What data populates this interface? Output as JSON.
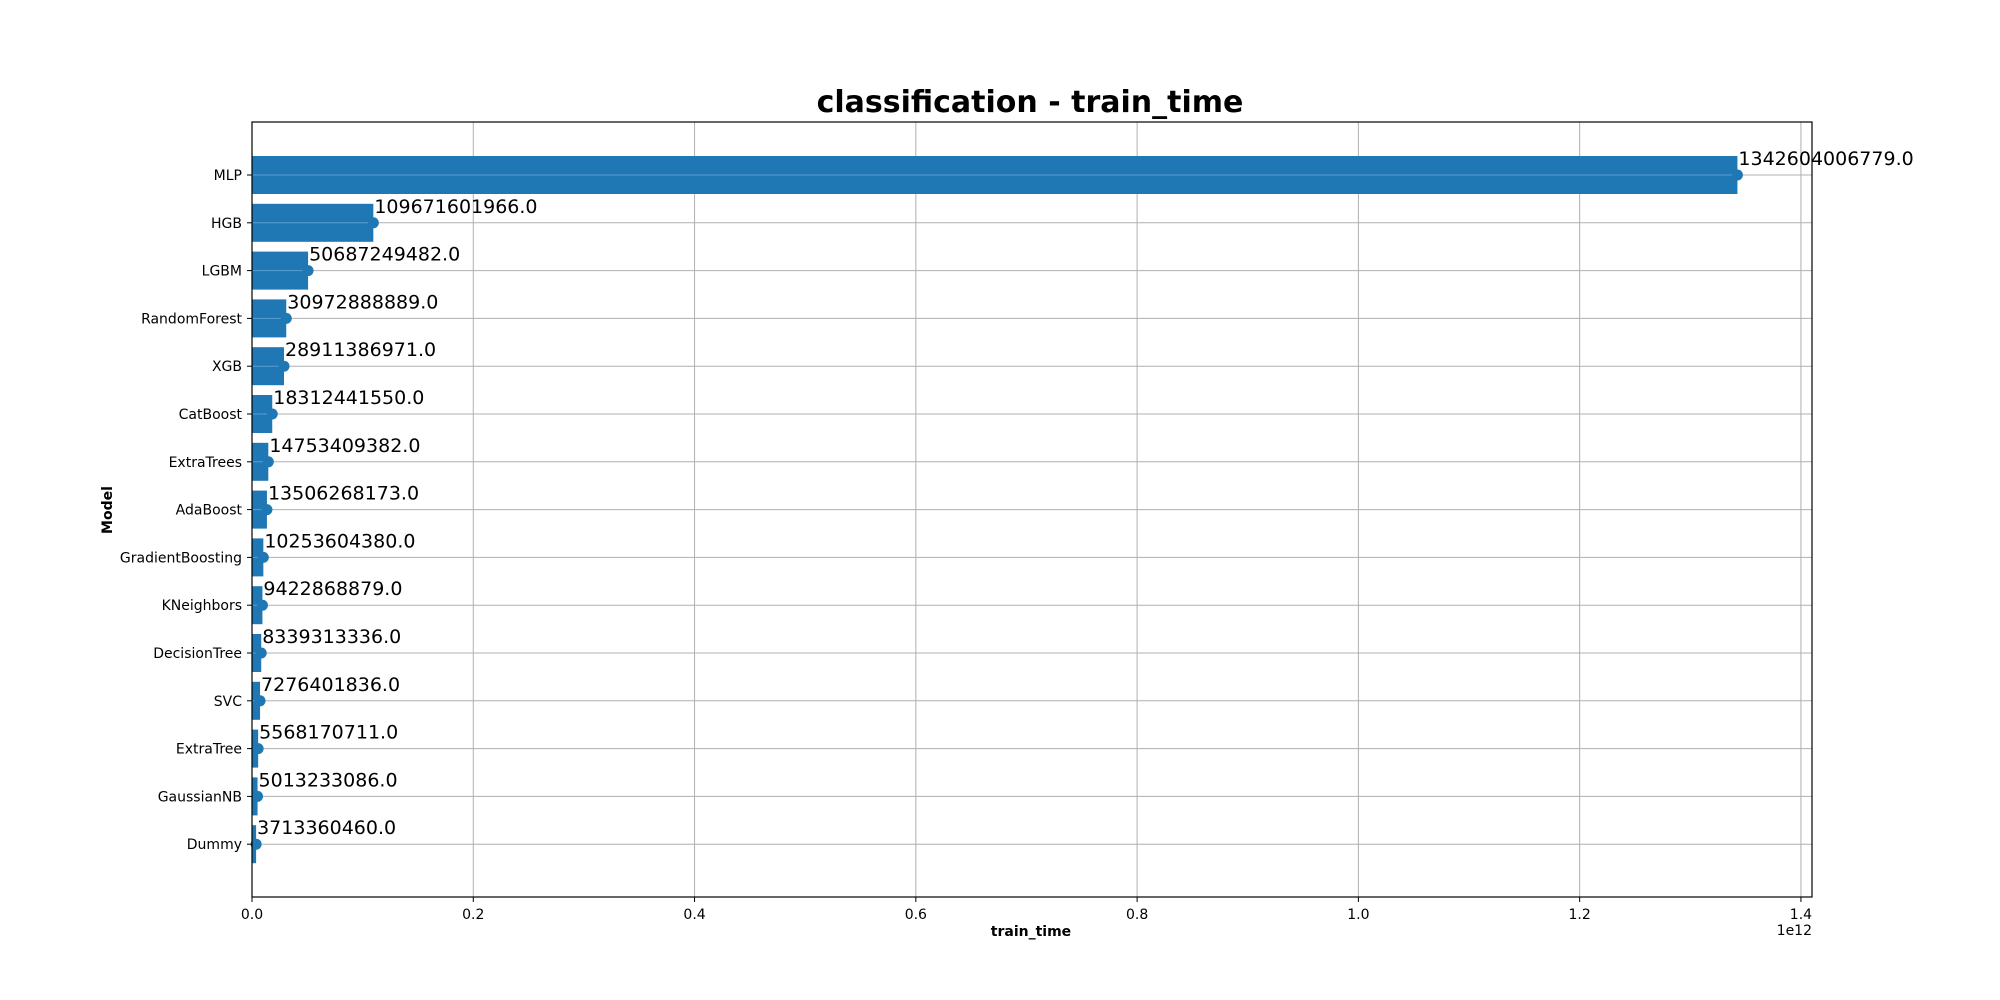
{
  "chart_data": {
    "type": "bar",
    "orientation": "horizontal",
    "title": "classification - train_time",
    "xlabel": "train_time",
    "ylabel": "Model",
    "x_scale_label": "1e12",
    "xlim": [
      0,
      1410000000000
    ],
    "xticks": [
      0,
      0.2,
      0.4,
      0.6,
      0.8,
      1.0,
      1.2,
      1.4
    ],
    "xtick_labels": [
      "0.0",
      "0.2",
      "0.4",
      "0.6",
      "0.8",
      "1.0",
      "1.2",
      "1.4"
    ],
    "grid": true,
    "bar_color": "#1f77b4",
    "categories": [
      "MLP",
      "HGB",
      "LGBM",
      "RandomForest",
      "XGB",
      "CatBoost",
      "ExtraTrees",
      "AdaBoost",
      "GradientBoosting",
      "KNeighbors",
      "DecisionTree",
      "SVC",
      "ExtraTree",
      "GaussianNB",
      "Dummy"
    ],
    "values": [
      1342604006779.0,
      109671601966.0,
      50687249482.0,
      30972888889.0,
      28911386971.0,
      18312441550.0,
      14753409382.0,
      13506268173.0,
      10253604380.0,
      9422868879.0,
      8339313336.0,
      7276401836.0,
      5568170711.0,
      5013233086.0,
      3713360460.0
    ],
    "data_labels": [
      "1342604006779.0",
      "109671601966.0",
      "50687249482.0",
      "30972888889.0",
      "28911386971.0",
      "18312441550.0",
      "14753409382.0",
      "13506268173.0",
      "10253604380.0",
      "9422868879.0",
      "8339313336.0",
      "7276401836.0",
      "5568170711.0",
      "5013233086.0",
      "3713360460.0"
    ]
  }
}
